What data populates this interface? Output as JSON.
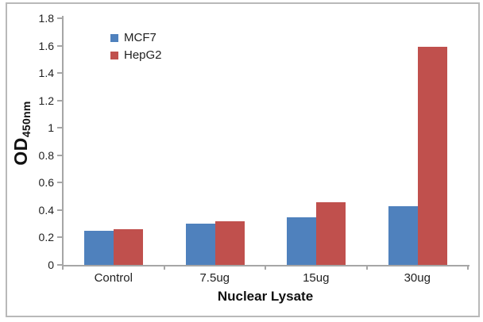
{
  "chart_data": {
    "type": "bar",
    "title": "",
    "categories": [
      "Control",
      "7.5ug",
      "15ug",
      "30ug"
    ],
    "series": [
      {
        "name": "MCF7",
        "color": "#4F81BD",
        "values": [
          0.25,
          0.3,
          0.35,
          0.43
        ]
      },
      {
        "name": "HepG2",
        "color": "#C0504D",
        "values": [
          0.26,
          0.32,
          0.46,
          1.59
        ]
      }
    ],
    "xlabel": "Nuclear Lysate",
    "ylabel": {
      "main": "OD",
      "sub": "450nm"
    },
    "ylim": [
      0,
      1.8
    ],
    "ytick_step": 0.2,
    "ytick_labels": [
      "0",
      "0.2",
      "0.4",
      "0.6",
      "0.8",
      "1",
      "1.2",
      "1.4",
      "1.6",
      "1.8"
    ],
    "grid": false,
    "legend_position": "upper-left-inside",
    "axis_color": "#A6A6A6",
    "background_color": "#FFFFFF",
    "border_color": "#B9B9B9"
  }
}
